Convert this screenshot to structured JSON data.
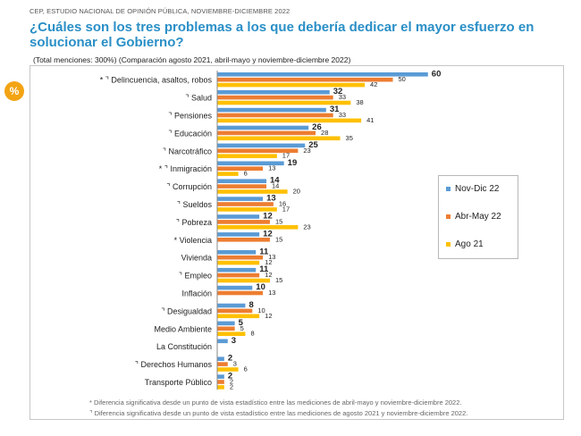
{
  "header": {
    "source_line": "CEP, ESTUDIO NACIONAL DE OPINIÓN PÚBLICA, NOVIEMBRE-DICIEMBRE 2022",
    "badge": "%"
  },
  "chart_data": {
    "type": "bar",
    "orientation": "horizontal",
    "title": "¿Cuáles son los tres problemas a los que debería dedicar el mayor esfuerzo en solucionar el Gobierno?",
    "subtitle": "(Total menciones: 300%) (Comparación agosto 2021, abril-mayo y noviembre-diciembre 2022)",
    "categories": [
      "* ⌝ Delincuencia, asaltos, robos",
      "⌝ Salud",
      "⌝ Pensiones",
      "⌝ Educación",
      "⌝ Narcotráfico",
      "* ⌝ Inmigración",
      "⌝ Corrupción",
      "⌝ Sueldos",
      "⌝ Pobreza",
      "* Violencia",
      "Vivienda",
      "⌝ Empleo",
      "Inflación",
      "⌝ Desigualdad",
      "Medio Ambiente",
      "La Constitución",
      "⌝ Derechos Humanos",
      "Transporte Público"
    ],
    "series": [
      {
        "name": "Nov-Dic 22",
        "color": "#5b9bd5",
        "values": [
          60,
          32,
          31,
          26,
          25,
          19,
          14,
          13,
          12,
          12,
          11,
          11,
          10,
          8,
          5,
          3,
          2,
          2
        ]
      },
      {
        "name": "Abr-May 22",
        "color": "#ed7d31",
        "values": [
          50,
          33,
          33,
          28,
          23,
          13,
          14,
          16,
          15,
          15,
          13,
          12,
          13,
          10,
          5,
          null,
          3,
          2
        ]
      },
      {
        "name": "Ago 21",
        "color": "#ffc000",
        "values": [
          42,
          38,
          41,
          35,
          17,
          6,
          20,
          17,
          23,
          null,
          12,
          15,
          null,
          12,
          8,
          null,
          6,
          2
        ]
      }
    ],
    "legend_position": "right",
    "grid": false
  },
  "notes": [
    "* Diferencia significativa desde un punto de vista estadístico entre las mediciones de abril-mayo y noviembre-diciembre 2022.",
    "⌝ Diferencia significativa desde un punto de vista estadístico entre las mediciones de agosto 2021 y noviembre-diciembre 2022."
  ]
}
